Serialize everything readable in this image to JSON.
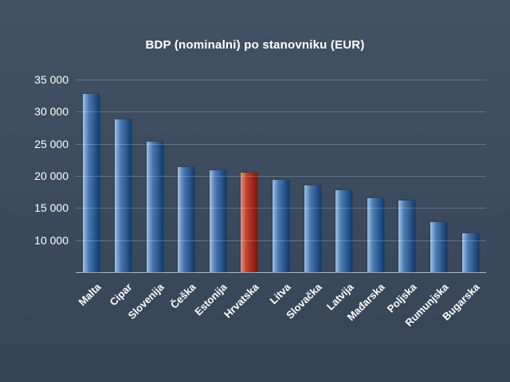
{
  "title": "BDP (nominalni) po stanovniku (EUR)",
  "chart_data": {
    "type": "bar",
    "title": "BDP (nominalni) po stanovniku (EUR)",
    "xlabel": "",
    "ylabel": "",
    "categories": [
      "Malta",
      "Cipar",
      "Slovenija",
      "Češka",
      "Estonija",
      "Hrvatska",
      "Litva",
      "Slovačka",
      "Latvija",
      "Mađarska",
      "Poljska",
      "Rumunjska",
      "Bugarska"
    ],
    "values": [
      32800,
      28800,
      25300,
      21400,
      20900,
      20500,
      19400,
      18500,
      17800,
      16500,
      16100,
      12800,
      11100
    ],
    "highlight_category": "Hrvatska",
    "ylim": [
      5000,
      35000
    ],
    "ytick_values": [
      35000,
      30000,
      25000,
      20000,
      15000,
      10000
    ],
    "ytick_labels": [
      "35 000",
      "30 000",
      "25 000",
      "20 000",
      "15 000",
      "10 000"
    ],
    "grid": true,
    "legend": false,
    "colors": {
      "background": "#3a4a5c",
      "bar_gradient_light": "#9cc2ea",
      "bar_gradient_dark": "#123a6b",
      "highlight_gradient_light": "#ea927e",
      "highlight_gradient_dark": "#7d140c",
      "gridline": "#5a6a7d",
      "axis_line": "#aebac6",
      "text": "#ffffff"
    }
  }
}
